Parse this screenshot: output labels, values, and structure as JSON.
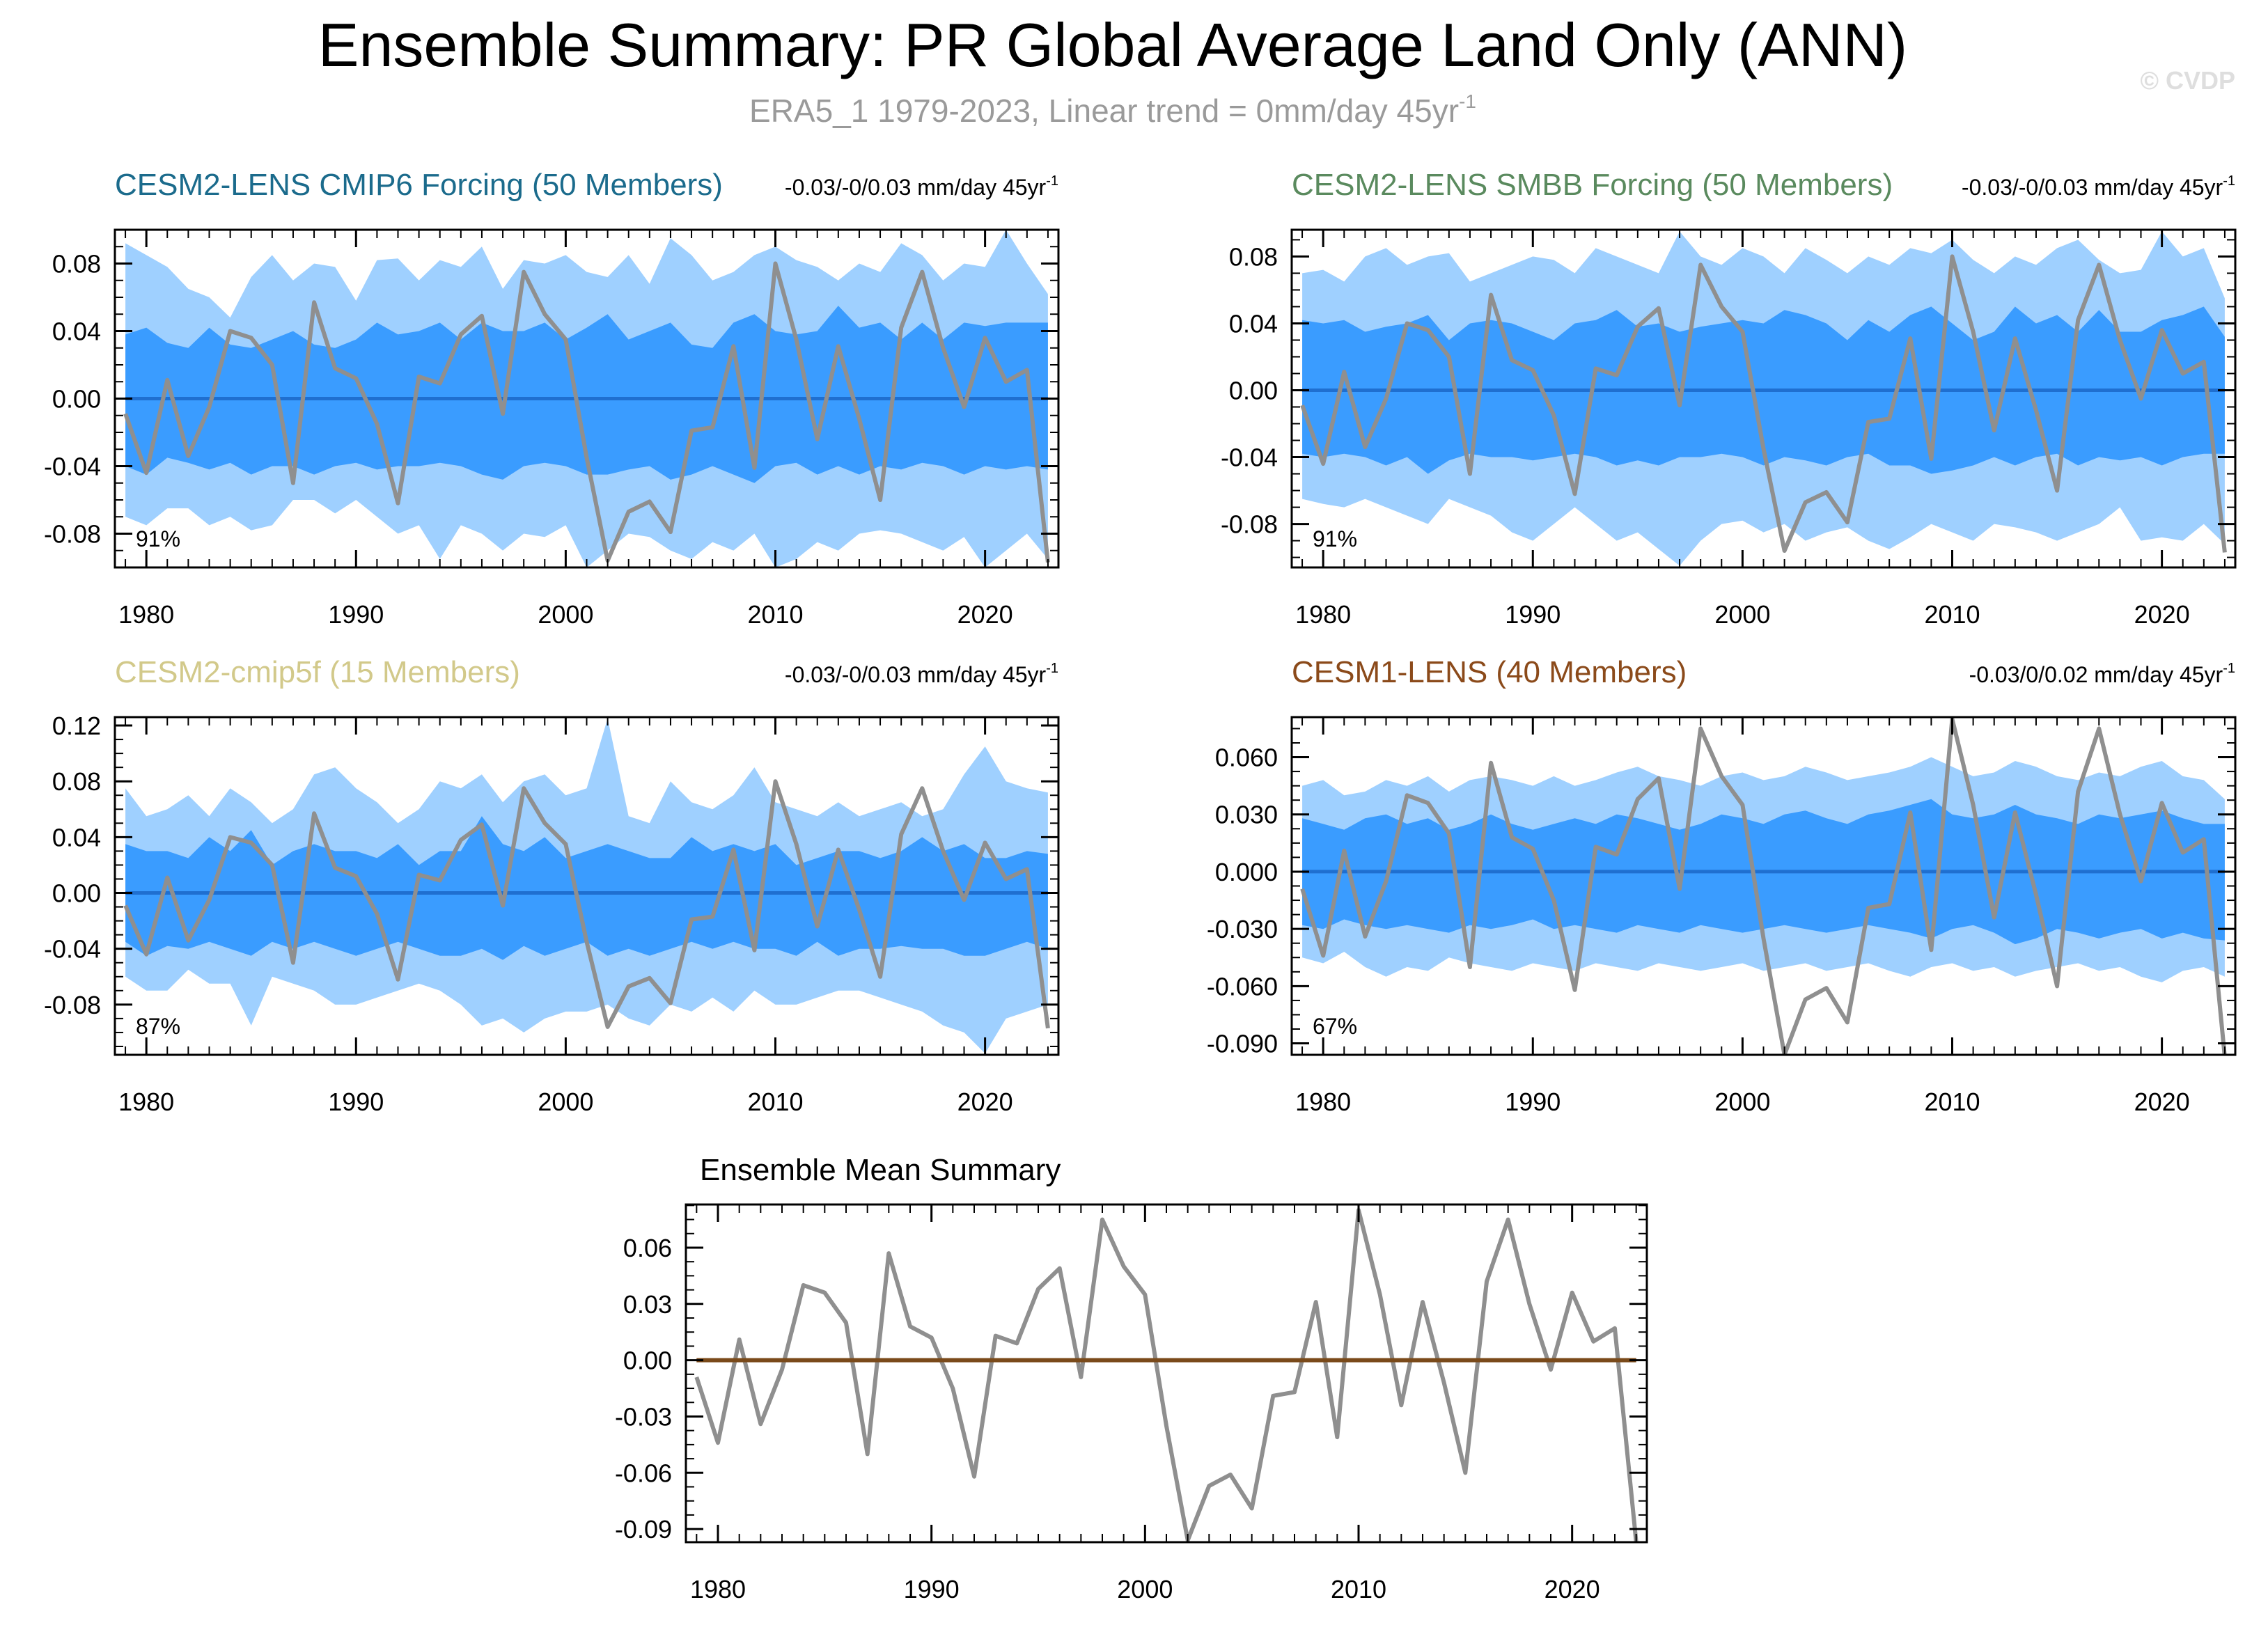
{
  "title": "Ensemble Summary: PR Global Average Land Only (ANN)",
  "subtitle": "ERA5_1 1979-2023, Linear trend = 0mm/day 45yr",
  "subtitle_sup": "-1",
  "watermark": "© CVDP",
  "colors": {
    "outer_band": "#9fd0ff",
    "inner_band": "#3a9cff",
    "ens_mean_line": "#1f6fd0",
    "obs_line": "#8f8f8f",
    "summary_mean_line": "#7a4a1a",
    "title_cesm2_cmip6": "#1b6b8c",
    "title_cesm2_smbb": "#5a8a5e",
    "title_cesm2_cmip5f": "#d2c98a",
    "title_cesm1": "#8b4a1a"
  },
  "chart_data": [
    {
      "id": "cesm2-lens-cmip6",
      "type": "area",
      "title": "CESM2-LENS CMIP6 Forcing (50 Members)",
      "trend_label": "-0.03/-0/0.03 mm/day 45yr",
      "trend_sup": "-1",
      "percent": "91%",
      "ylim": [
        -0.1,
        0.1
      ],
      "yticks": [
        "0.08",
        "0.04",
        "0.00",
        "-0.04",
        "-0.08"
      ],
      "ytick_values": [
        0.08,
        0.04,
        0.0,
        -0.04,
        -0.08
      ],
      "xticks": [
        "1980",
        "1990",
        "2000",
        "2010",
        "2020"
      ],
      "outer_hi": [
        0.092,
        0.085,
        0.078,
        0.065,
        0.06,
        0.048,
        0.072,
        0.085,
        0.07,
        0.08,
        0.078,
        0.058,
        0.082,
        0.083,
        0.07,
        0.082,
        0.078,
        0.09,
        0.065,
        0.082,
        0.08,
        0.085,
        0.075,
        0.072,
        0.085,
        0.068,
        0.095,
        0.085,
        0.07,
        0.075,
        0.085,
        0.09,
        0.082,
        0.078,
        0.07,
        0.08,
        0.075,
        0.092,
        0.085,
        0.07,
        0.08,
        0.078,
        0.1,
        0.08,
        0.062
      ],
      "inner_hi": [
        0.038,
        0.042,
        0.033,
        0.03,
        0.042,
        0.032,
        0.03,
        0.035,
        0.04,
        0.032,
        0.03,
        0.035,
        0.045,
        0.038,
        0.04,
        0.045,
        0.035,
        0.045,
        0.04,
        0.04,
        0.045,
        0.035,
        0.042,
        0.05,
        0.035,
        0.04,
        0.045,
        0.032,
        0.03,
        0.045,
        0.05,
        0.04,
        0.038,
        0.04,
        0.055,
        0.042,
        0.045,
        0.035,
        0.045,
        0.035,
        0.045,
        0.043,
        0.045,
        0.045,
        0.045
      ],
      "inner_lo": [
        -0.04,
        -0.045,
        -0.035,
        -0.038,
        -0.042,
        -0.038,
        -0.045,
        -0.04,
        -0.04,
        -0.045,
        -0.04,
        -0.038,
        -0.042,
        -0.04,
        -0.04,
        -0.038,
        -0.04,
        -0.045,
        -0.048,
        -0.04,
        -0.038,
        -0.04,
        -0.045,
        -0.045,
        -0.042,
        -0.04,
        -0.048,
        -0.045,
        -0.04,
        -0.045,
        -0.05,
        -0.04,
        -0.038,
        -0.045,
        -0.04,
        -0.045,
        -0.04,
        -0.042,
        -0.038,
        -0.04,
        -0.045,
        -0.04,
        -0.042,
        -0.04,
        -0.042
      ],
      "outer_lo": [
        -0.07,
        -0.075,
        -0.065,
        -0.065,
        -0.075,
        -0.07,
        -0.078,
        -0.075,
        -0.06,
        -0.06,
        -0.068,
        -0.06,
        -0.07,
        -0.08,
        -0.075,
        -0.095,
        -0.075,
        -0.08,
        -0.09,
        -0.08,
        -0.082,
        -0.075,
        -0.1,
        -0.09,
        -0.08,
        -0.082,
        -0.09,
        -0.095,
        -0.085,
        -0.09,
        -0.08,
        -0.1,
        -0.095,
        -0.085,
        -0.09,
        -0.08,
        -0.078,
        -0.08,
        -0.085,
        -0.09,
        -0.082,
        -0.1,
        -0.09,
        -0.08,
        -0.095
      ],
      "ens_mean": [
        0.0,
        0.0,
        0.0,
        0.0,
        0.0,
        0.0,
        0.0,
        0.0,
        0.0,
        0.0,
        0.0,
        0.0,
        0.0,
        0.0,
        0.0,
        0.0,
        0.0,
        0.0,
        0.0,
        0.0,
        0.0,
        0.0,
        0.0,
        0.0,
        0.0,
        0.0,
        0.0,
        0.0,
        0.0,
        0.0,
        0.0,
        0.0,
        0.0,
        0.0,
        0.0,
        0.0,
        0.0,
        0.0,
        0.0,
        0.0,
        0.0,
        0.0,
        0.0,
        0.0,
        0.0
      ]
    },
    {
      "id": "cesm2-lens-smbb",
      "type": "area",
      "title": "CESM2-LENS SMBB Forcing (50 Members)",
      "trend_label": "-0.03/-0/0.03 mm/day 45yr",
      "trend_sup": "-1",
      "percent": "91%",
      "ylim": [
        -0.106,
        0.096
      ],
      "yticks": [
        "0.08",
        "0.04",
        "0.00",
        "-0.04",
        "-0.08"
      ],
      "ytick_values": [
        0.08,
        0.04,
        0.0,
        -0.04,
        -0.08
      ],
      "xticks": [
        "1980",
        "1990",
        "2000",
        "2010",
        "2020"
      ],
      "outer_hi": [
        0.07,
        0.072,
        0.065,
        0.08,
        0.085,
        0.075,
        0.08,
        0.082,
        0.065,
        0.07,
        0.075,
        0.08,
        0.078,
        0.07,
        0.085,
        0.08,
        0.075,
        0.07,
        0.095,
        0.08,
        0.075,
        0.085,
        0.08,
        0.07,
        0.085,
        0.078,
        0.07,
        0.08,
        0.075,
        0.085,
        0.082,
        0.09,
        0.078,
        0.07,
        0.08,
        0.075,
        0.085,
        0.09,
        0.078,
        0.07,
        0.072,
        0.095,
        0.08,
        0.085,
        0.055
      ],
      "inner_hi": [
        0.042,
        0.04,
        0.042,
        0.035,
        0.038,
        0.04,
        0.045,
        0.03,
        0.04,
        0.042,
        0.04,
        0.035,
        0.03,
        0.04,
        0.042,
        0.048,
        0.038,
        0.04,
        0.035,
        0.038,
        0.04,
        0.042,
        0.04,
        0.048,
        0.045,
        0.04,
        0.03,
        0.042,
        0.035,
        0.045,
        0.05,
        0.04,
        0.03,
        0.035,
        0.05,
        0.04,
        0.045,
        0.035,
        0.048,
        0.035,
        0.035,
        0.042,
        0.045,
        0.05,
        0.032
      ],
      "inner_lo": [
        -0.038,
        -0.04,
        -0.038,
        -0.04,
        -0.045,
        -0.04,
        -0.05,
        -0.042,
        -0.038,
        -0.04,
        -0.04,
        -0.042,
        -0.04,
        -0.038,
        -0.04,
        -0.045,
        -0.042,
        -0.045,
        -0.04,
        -0.04,
        -0.038,
        -0.04,
        -0.045,
        -0.04,
        -0.042,
        -0.045,
        -0.04,
        -0.038,
        -0.045,
        -0.045,
        -0.05,
        -0.048,
        -0.045,
        -0.04,
        -0.045,
        -0.04,
        -0.038,
        -0.045,
        -0.04,
        -0.042,
        -0.04,
        -0.045,
        -0.04,
        -0.038,
        -0.038
      ],
      "outer_lo": [
        -0.065,
        -0.068,
        -0.07,
        -0.065,
        -0.07,
        -0.075,
        -0.08,
        -0.065,
        -0.07,
        -0.075,
        -0.085,
        -0.09,
        -0.08,
        -0.07,
        -0.08,
        -0.09,
        -0.085,
        -0.095,
        -0.105,
        -0.09,
        -0.08,
        -0.078,
        -0.085,
        -0.08,
        -0.09,
        -0.085,
        -0.082,
        -0.09,
        -0.095,
        -0.088,
        -0.08,
        -0.085,
        -0.09,
        -0.08,
        -0.082,
        -0.085,
        -0.09,
        -0.085,
        -0.08,
        -0.07,
        -0.09,
        -0.088,
        -0.09,
        -0.08,
        -0.092
      ],
      "ens_mean": [
        0.0,
        0.0,
        0.0,
        0.0,
        0.0,
        0.0,
        0.0,
        0.0,
        0.0,
        0.0,
        0.0,
        0.0,
        0.0,
        0.0,
        0.0,
        0.0,
        0.0,
        0.0,
        0.0,
        0.0,
        0.0,
        0.0,
        0.0,
        0.0,
        0.0,
        0.0,
        0.0,
        0.0,
        0.0,
        0.0,
        0.0,
        0.0,
        0.0,
        0.0,
        0.0,
        0.0,
        0.0,
        0.0,
        0.0,
        0.0,
        0.0,
        0.0,
        0.0,
        0.0,
        0.0
      ]
    },
    {
      "id": "cesm2-cmip5f",
      "type": "area",
      "title": "CESM2-cmip5f (15 Members)",
      "trend_label": "-0.03/-0/0.03 mm/day 45yr",
      "trend_sup": "-1",
      "percent": "87%",
      "ylim": [
        -0.116,
        0.126
      ],
      "yticks": [
        "0.12",
        "0.08",
        "0.04",
        "0.00",
        "-0.04",
        "-0.08"
      ],
      "ytick_values": [
        0.12,
        0.08,
        0.04,
        0.0,
        -0.04,
        -0.08
      ],
      "xticks": [
        "1980",
        "1990",
        "2000",
        "2010",
        "2020"
      ],
      "outer_hi": [
        0.075,
        0.055,
        0.06,
        0.07,
        0.055,
        0.075,
        0.065,
        0.05,
        0.06,
        0.085,
        0.09,
        0.075,
        0.065,
        0.05,
        0.06,
        0.08,
        0.075,
        0.085,
        0.065,
        0.08,
        0.085,
        0.07,
        0.075,
        0.125,
        0.055,
        0.05,
        0.08,
        0.065,
        0.06,
        0.07,
        0.09,
        0.065,
        0.06,
        0.055,
        0.065,
        0.055,
        0.06,
        0.065,
        0.055,
        0.06,
        0.085,
        0.105,
        0.08,
        0.075,
        0.072
      ],
      "inner_hi": [
        0.035,
        0.03,
        0.03,
        0.025,
        0.04,
        0.03,
        0.045,
        0.02,
        0.03,
        0.035,
        0.03,
        0.03,
        0.025,
        0.035,
        0.02,
        0.03,
        0.03,
        0.055,
        0.035,
        0.03,
        0.04,
        0.025,
        0.03,
        0.035,
        0.03,
        0.025,
        0.025,
        0.04,
        0.03,
        0.035,
        0.03,
        0.035,
        0.02,
        0.025,
        0.03,
        0.03,
        0.025,
        0.03,
        0.04,
        0.03,
        0.035,
        0.025,
        0.025,
        0.03,
        0.028
      ],
      "inner_lo": [
        -0.035,
        -0.045,
        -0.038,
        -0.04,
        -0.035,
        -0.04,
        -0.045,
        -0.035,
        -0.04,
        -0.035,
        -0.04,
        -0.045,
        -0.04,
        -0.035,
        -0.04,
        -0.045,
        -0.045,
        -0.04,
        -0.048,
        -0.038,
        -0.045,
        -0.04,
        -0.035,
        -0.045,
        -0.04,
        -0.045,
        -0.04,
        -0.035,
        -0.04,
        -0.035,
        -0.04,
        -0.04,
        -0.045,
        -0.035,
        -0.045,
        -0.04,
        -0.04,
        -0.038,
        -0.04,
        -0.04,
        -0.045,
        -0.045,
        -0.04,
        -0.035,
        -0.04
      ],
      "outer_lo": [
        -0.06,
        -0.07,
        -0.07,
        -0.055,
        -0.065,
        -0.065,
        -0.095,
        -0.06,
        -0.065,
        -0.07,
        -0.08,
        -0.08,
        -0.075,
        -0.07,
        -0.065,
        -0.07,
        -0.08,
        -0.095,
        -0.09,
        -0.1,
        -0.09,
        -0.085,
        -0.085,
        -0.08,
        -0.09,
        -0.095,
        -0.08,
        -0.085,
        -0.075,
        -0.085,
        -0.07,
        -0.08,
        -0.08,
        -0.075,
        -0.07,
        -0.07,
        -0.075,
        -0.08,
        -0.085,
        -0.095,
        -0.1,
        -0.115,
        -0.09,
        -0.085,
        -0.08
      ],
      "ens_mean": [
        0.0,
        0.0,
        0.0,
        0.0,
        0.0,
        0.0,
        0.0,
        0.0,
        0.0,
        0.0,
        0.0,
        0.0,
        0.0,
        0.0,
        0.0,
        0.0,
        0.0,
        0.0,
        0.0,
        0.0,
        0.0,
        0.0,
        0.0,
        0.0,
        0.0,
        0.0,
        0.0,
        0.0,
        0.0,
        0.0,
        0.0,
        0.0,
        0.0,
        0.0,
        0.0,
        0.0,
        0.0,
        0.0,
        0.0,
        0.0,
        0.0,
        0.0,
        0.0,
        0.0,
        0.0
      ]
    },
    {
      "id": "cesm1-lens",
      "type": "area",
      "title": "CESM1-LENS (40 Members)",
      "trend_label": "-0.03/0/0.02 mm/day 45yr",
      "trend_sup": "-1",
      "percent": "67%",
      "ylim": [
        -0.096,
        0.081
      ],
      "yticks": [
        "0.060",
        "0.030",
        "0.000",
        "-0.030",
        "-0.060",
        "-0.090"
      ],
      "ytick_values": [
        0.06,
        0.03,
        0.0,
        -0.03,
        -0.06,
        -0.09
      ],
      "xticks": [
        "1980",
        "1990",
        "2000",
        "2010",
        "2020"
      ],
      "outer_hi": [
        0.045,
        0.048,
        0.04,
        0.042,
        0.048,
        0.045,
        0.05,
        0.042,
        0.048,
        0.05,
        0.048,
        0.045,
        0.05,
        0.045,
        0.048,
        0.052,
        0.055,
        0.05,
        0.048,
        0.045,
        0.05,
        0.052,
        0.048,
        0.05,
        0.055,
        0.052,
        0.048,
        0.05,
        0.052,
        0.055,
        0.06,
        0.055,
        0.05,
        0.052,
        0.058,
        0.055,
        0.05,
        0.048,
        0.052,
        0.05,
        0.055,
        0.058,
        0.05,
        0.048,
        0.038
      ],
      "inner_hi": [
        0.028,
        0.025,
        0.022,
        0.028,
        0.03,
        0.025,
        0.028,
        0.022,
        0.025,
        0.03,
        0.025,
        0.022,
        0.025,
        0.028,
        0.025,
        0.03,
        0.028,
        0.025,
        0.022,
        0.025,
        0.03,
        0.028,
        0.025,
        0.03,
        0.032,
        0.028,
        0.025,
        0.03,
        0.032,
        0.035,
        0.038,
        0.03,
        0.028,
        0.03,
        0.035,
        0.03,
        0.028,
        0.025,
        0.03,
        0.028,
        0.03,
        0.032,
        0.028,
        0.025,
        0.025
      ],
      "inner_lo": [
        -0.028,
        -0.03,
        -0.025,
        -0.028,
        -0.03,
        -0.028,
        -0.03,
        -0.032,
        -0.028,
        -0.03,
        -0.028,
        -0.025,
        -0.03,
        -0.028,
        -0.03,
        -0.032,
        -0.028,
        -0.03,
        -0.032,
        -0.028,
        -0.03,
        -0.032,
        -0.03,
        -0.028,
        -0.03,
        -0.032,
        -0.03,
        -0.028,
        -0.03,
        -0.032,
        -0.035,
        -0.03,
        -0.028,
        -0.032,
        -0.038,
        -0.035,
        -0.03,
        -0.032,
        -0.035,
        -0.032,
        -0.03,
        -0.035,
        -0.032,
        -0.035,
        -0.036
      ],
      "outer_lo": [
        -0.045,
        -0.048,
        -0.042,
        -0.05,
        -0.055,
        -0.05,
        -0.052,
        -0.045,
        -0.048,
        -0.05,
        -0.052,
        -0.048,
        -0.05,
        -0.052,
        -0.048,
        -0.05,
        -0.052,
        -0.048,
        -0.05,
        -0.052,
        -0.05,
        -0.048,
        -0.052,
        -0.05,
        -0.048,
        -0.052,
        -0.05,
        -0.048,
        -0.052,
        -0.055,
        -0.05,
        -0.048,
        -0.052,
        -0.05,
        -0.055,
        -0.052,
        -0.05,
        -0.048,
        -0.052,
        -0.05,
        -0.055,
        -0.058,
        -0.052,
        -0.05,
        -0.055
      ],
      "ens_mean": [
        0.0,
        0.0,
        0.0,
        0.0,
        0.0,
        0.0,
        0.0,
        0.0,
        0.0,
        0.0,
        0.0,
        0.0,
        0.0,
        0.0,
        0.0,
        0.0,
        0.0,
        0.0,
        0.0,
        0.0,
        0.0,
        0.0,
        0.0,
        0.0,
        0.0,
        0.0,
        0.0,
        0.0,
        0.0,
        0.0,
        0.0,
        0.0,
        0.0,
        0.0,
        0.0,
        0.0,
        0.0,
        0.0,
        0.0,
        0.0,
        0.0,
        0.0,
        0.0,
        0.0,
        0.0
      ]
    },
    {
      "id": "ensemble-mean-summary",
      "type": "line",
      "title": "Ensemble Mean Summary",
      "ylim": [
        -0.097,
        0.083
      ],
      "yticks": [
        "0.06",
        "0.03",
        "0.00",
        "-0.03",
        "-0.06",
        "-0.09"
      ],
      "ytick_values": [
        0.06,
        0.03,
        0.0,
        -0.03,
        -0.06,
        -0.09
      ],
      "xticks": [
        "1980",
        "1990",
        "2000",
        "2010",
        "2020"
      ],
      "ens_mean": [
        0.0,
        0.0,
        0.0,
        0.0,
        0.0,
        0.0,
        0.0,
        0.0,
        0.0,
        0.0,
        0.0,
        0.0,
        0.0,
        0.0,
        0.0,
        0.0,
        0.0,
        0.0,
        0.0,
        0.0,
        0.0,
        0.0,
        0.0,
        0.0,
        0.0,
        0.0,
        0.0,
        0.0,
        0.0,
        0.0,
        0.0,
        0.0,
        0.0,
        0.0,
        0.0,
        0.0,
        0.0,
        0.0,
        0.0,
        0.0,
        0.0,
        0.0,
        0.0,
        0.0,
        0.0
      ]
    }
  ],
  "observations": {
    "name": "ERA5_1",
    "years": [
      1979,
      1980,
      1981,
      1982,
      1983,
      1984,
      1985,
      1986,
      1987,
      1988,
      1989,
      1990,
      1991,
      1992,
      1993,
      1994,
      1995,
      1996,
      1997,
      1998,
      1999,
      2000,
      2001,
      2002,
      2003,
      2004,
      2005,
      2006,
      2007,
      2008,
      2009,
      2010,
      2011,
      2012,
      2013,
      2014,
      2015,
      2016,
      2017,
      2018,
      2019,
      2020,
      2021,
      2022,
      2023
    ],
    "values": [
      -0.009,
      -0.044,
      0.011,
      -0.034,
      -0.005,
      0.04,
      0.036,
      0.02,
      -0.05,
      0.057,
      0.018,
      0.012,
      -0.015,
      -0.062,
      0.013,
      0.009,
      0.038,
      0.049,
      -0.009,
      0.075,
      0.05,
      0.035,
      -0.035,
      -0.096,
      -0.067,
      -0.061,
      -0.079,
      -0.019,
      -0.017,
      0.031,
      -0.041,
      0.08,
      0.035,
      -0.024,
      0.031,
      -0.012,
      -0.06,
      0.042,
      0.075,
      0.03,
      -0.005,
      0.036,
      0.01,
      0.017,
      -0.097
    ]
  }
}
